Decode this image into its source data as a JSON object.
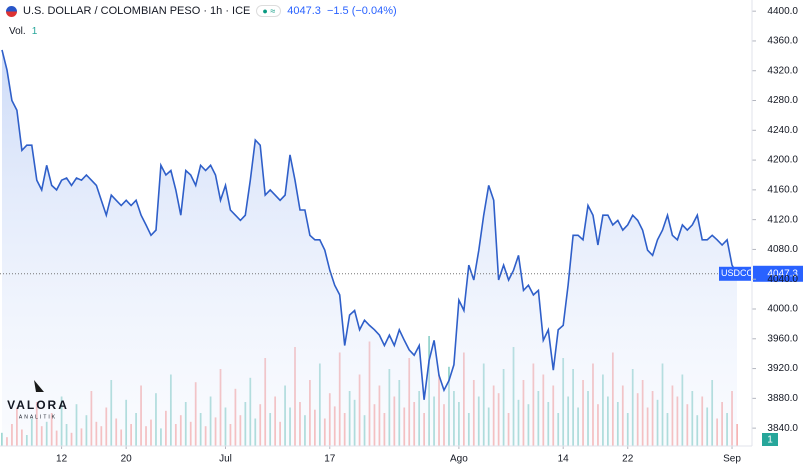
{
  "chart_data": {
    "type": "line",
    "title": "U.S. DOLLAR / COLOMBIAN PESO · 1h · ICE",
    "last_price": "4047.3",
    "change": "−1.5 (−0.04%)",
    "volume_label": "Vol.",
    "volume_value": "1",
    "symbol": "USDCOP",
    "logo": "VALORA",
    "logo_sub": "ANALITIK",
    "pane_badge": "1",
    "ylim": [
      3816,
      4415
    ],
    "yticks": [
      {
        "value": 3840,
        "label": "3840.0"
      },
      {
        "value": 3880,
        "label": "3880.0"
      },
      {
        "value": 3920,
        "label": "3920.0"
      },
      {
        "value": 3960,
        "label": "3960.0"
      },
      {
        "value": 4000,
        "label": "4000.0"
      },
      {
        "value": 4040,
        "label": "4040.0"
      },
      {
        "value": 4080,
        "label": "4080.0"
      },
      {
        "value": 4120,
        "label": "4120.0"
      },
      {
        "value": 4160,
        "label": "4160.0"
      },
      {
        "value": 4200,
        "label": "4200.0"
      },
      {
        "value": 4240,
        "label": "4240.0"
      },
      {
        "value": 4280,
        "label": "4280.0"
      },
      {
        "value": 4320,
        "label": "4320.0"
      },
      {
        "value": 4360,
        "label": "4360.0"
      },
      {
        "value": 4400,
        "label": "4400.0"
      }
    ],
    "xticks": [
      {
        "value": 12,
        "label": "12"
      },
      {
        "value": 25,
        "label": "20"
      },
      {
        "value": 45,
        "label": "Jul"
      },
      {
        "value": 66,
        "label": "17"
      },
      {
        "value": 92,
        "label": "Ago"
      },
      {
        "value": 113,
        "label": "14"
      },
      {
        "value": 126,
        "label": "22"
      },
      {
        "value": 147,
        "label": "Sep"
      }
    ],
    "series": [
      {
        "name": "USDCOP",
        "color": "#2f5fc9",
        "values": [
          4348,
          4321,
          4280,
          4267,
          4213,
          4220,
          4220,
          4173,
          4160,
          4193,
          4166,
          4160,
          4173,
          4176,
          4166,
          4176,
          4173,
          4180,
          4173,
          4166,
          4146,
          4126,
          4153,
          4146,
          4139,
          4146,
          4139,
          4146,
          4126,
          4113,
          4099,
          4106,
          4193,
          4180,
          4186,
          4160,
          4126,
          4186,
          4180,
          4166,
          4193,
          4186,
          4193,
          4180,
          4146,
          4166,
          4133,
          4126,
          4119,
          4126,
          4173,
          4227,
          4220,
          4153,
          4160,
          4153,
          4146,
          4153,
          4207,
          4173,
          4133,
          4133,
          4099,
          4093,
          4093,
          4079,
          4052,
          4032,
          4019,
          3951,
          3992,
          3998,
          3972,
          3985,
          3978,
          3972,
          3965,
          3951,
          3965,
          3951,
          3972,
          3958,
          3945,
          3938,
          3951,
          3878,
          3931,
          3958,
          3911,
          3891,
          3904,
          3925,
          4012,
          3998,
          4059,
          4039,
          4079,
          4126,
          4166,
          4146,
          4039,
          4059,
          4039,
          4052,
          4072,
          4025,
          4032,
          4019,
          4025,
          3958,
          3972,
          3918,
          3972,
          3978,
          4032,
          4099,
          4099,
          4093,
          4139,
          4126,
          4086,
          4126,
          4126,
          4113,
          4119,
          4106,
          4113,
          4126,
          4119,
          4106,
          4079,
          4072,
          4093,
          4106,
          4126,
          4099,
          4093,
          4113,
          4106,
          4113,
          4126,
          4093,
          4093,
          4099,
          4093,
          4086,
          4093,
          4059,
          4047.3
        ]
      },
      {
        "name": "Vol.",
        "values": [
          12,
          8,
          20,
          35,
          15,
          10,
          25,
          40,
          18,
          22,
          30,
          14,
          45,
          20,
          12,
          38,
          16,
          28,
          50,
          22,
          18,
          35,
          60,
          25,
          15,
          42,
          20,
          30,
          55,
          18,
          24,
          48,
          16,
          32,
          65,
          20,
          28,
          40,
          22,
          58,
          30,
          18,
          45,
          26,
          70,
          35,
          20,
          52,
          28,
          40,
          62,
          25,
          38,
          80,
          30,
          45,
          22,
          55,
          35,
          90,
          40,
          28,
          60,
          33,
          75,
          25,
          48,
          36,
          85,
          30,
          50,
          42,
          65,
          28,
          95,
          38,
          55,
          30,
          70,
          45,
          60,
          35,
          80,
          40,
          50,
          30,
          100,
          45,
          65,
          38,
          72,
          50,
          40,
          85,
          30,
          60,
          45,
          75,
          35,
          55,
          48,
          70,
          30,
          90,
          42,
          60,
          38,
          75,
          50,
          65,
          40,
          55,
          30,
          80,
          45,
          70,
          35,
          60,
          50,
          75,
          38,
          65,
          45,
          85,
          40,
          55,
          30,
          70,
          48,
          60,
          35,
          50,
          42,
          75,
          30,
          55,
          45,
          65,
          38,
          50,
          28,
          45,
          35,
          60,
          25,
          40,
          30,
          50,
          20
        ]
      }
    ],
    "up_color": "#26a69a",
    "down_color": "#ef5350",
    "grid": false
  }
}
